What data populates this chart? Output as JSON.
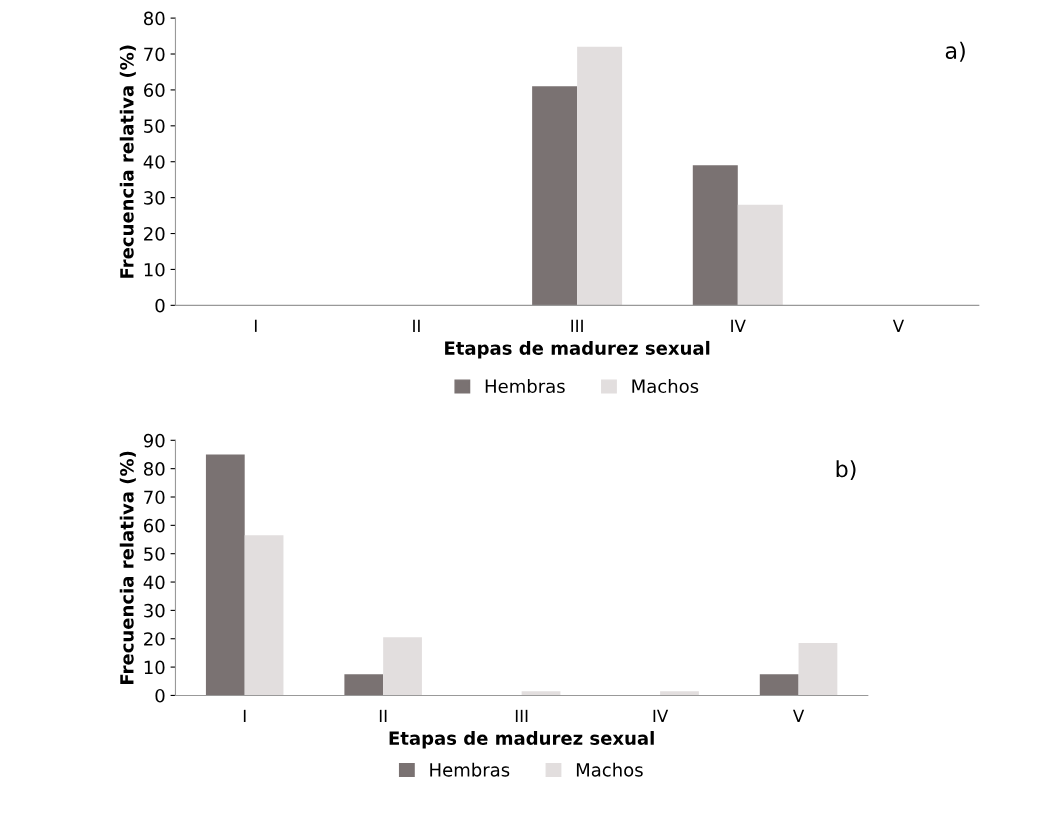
{
  "chart_data": [
    {
      "type": "bar",
      "annotations": [
        "a)"
      ],
      "xlabel": "Etapas de madurez sexual",
      "ylabel": "Frecuencia relativa (%)",
      "categories": [
        "I",
        "II",
        "III",
        "IV",
        "V"
      ],
      "ylim": [
        0,
        80
      ],
      "yticks": [
        0,
        10,
        20,
        30,
        40,
        50,
        60,
        70,
        80
      ],
      "grid": false,
      "legend": "bottom",
      "series": [
        {
          "name": "Hembras",
          "color": "#7a7272",
          "values": [
            0,
            0,
            61,
            39,
            0
          ]
        },
        {
          "name": "Machos",
          "color": "#e2dede",
          "values": [
            0,
            0,
            72,
            28,
            0
          ]
        }
      ]
    },
    {
      "type": "bar",
      "annotations": [
        "b)"
      ],
      "xlabel": "Etapas de madurez sexual",
      "ylabel": "Frecuencia relativa (%)",
      "categories": [
        "I",
        "II",
        "III",
        "IV",
        "V"
      ],
      "ylim": [
        0,
        90
      ],
      "yticks": [
        0,
        10,
        20,
        30,
        40,
        50,
        60,
        70,
        80,
        90
      ],
      "grid": false,
      "legend": "bottom",
      "series": [
        {
          "name": "Hembras",
          "color": "#7a7272",
          "values": [
            85,
            7.5,
            0,
            0,
            7.5
          ]
        },
        {
          "name": "Machos",
          "color": "#e2dede",
          "values": [
            56.5,
            20.5,
            1.5,
            1.5,
            18.5
          ]
        }
      ]
    }
  ]
}
